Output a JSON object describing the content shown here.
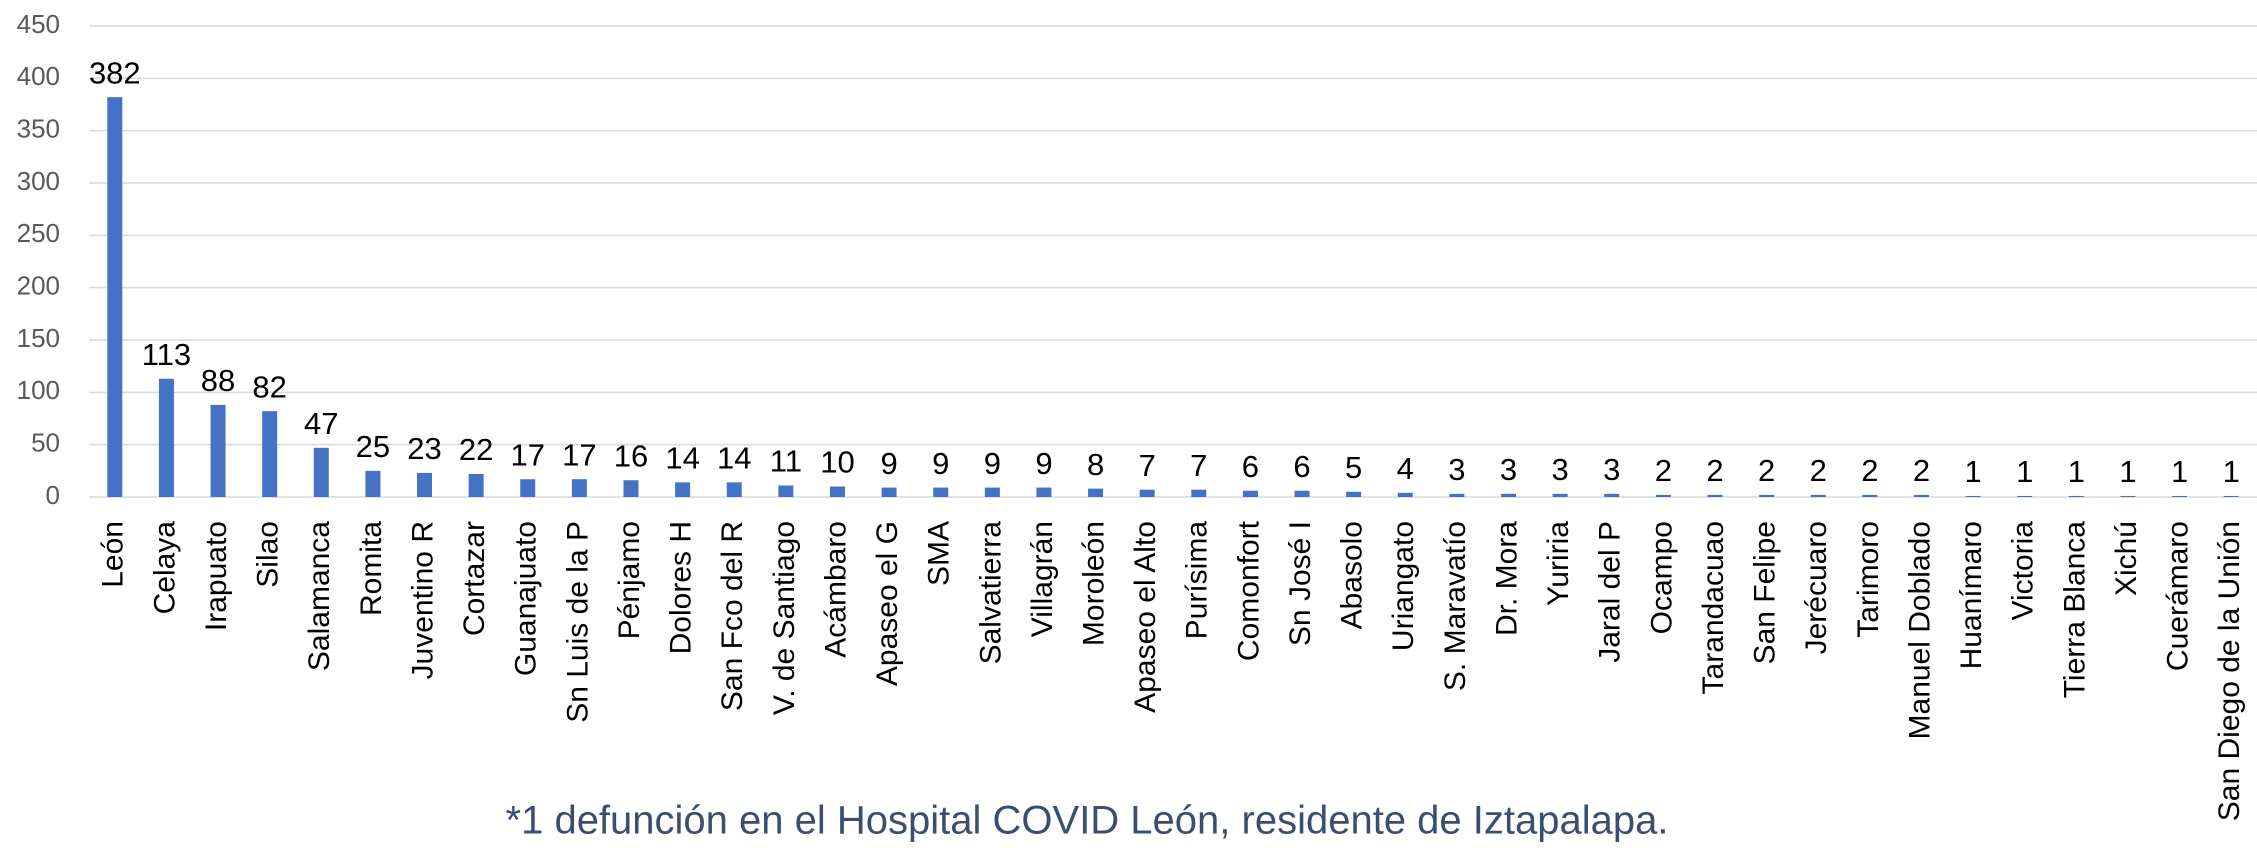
{
  "chart_data": {
    "type": "bar",
    "categories": [
      "León",
      "Celaya",
      "Irapuato",
      "Silao",
      "Salamanca",
      "Romita",
      "Juventino R",
      "Cortazar",
      "Guanajuato",
      "Sn Luis de la P",
      "Pénjamo",
      "Dolores H",
      "San Fco del R",
      "V. de Santiago",
      "Acámbaro",
      "Apaseo el G",
      "SMA",
      "Salvatierra",
      "Villagrán",
      "Moroleón",
      "Apaseo el Alto",
      "Purísima",
      "Comonfort",
      "Sn José I",
      "Abasolo",
      "Uriangato",
      "S. Maravatío",
      "Dr. Mora",
      "Yuriria",
      "Jaral del P",
      "Ocampo",
      "Tarandacuao",
      "San Felipe",
      "Jerécuaro",
      "Tarimoro",
      "Manuel Doblado",
      "Huanímaro",
      "Victoria",
      "Tierra Blanca",
      "Xichú",
      "Cuerámaro",
      "San Diego de la Unión"
    ],
    "values": [
      382,
      113,
      88,
      82,
      47,
      25,
      23,
      22,
      17,
      17,
      16,
      14,
      14,
      11,
      10,
      9,
      9,
      9,
      9,
      8,
      7,
      7,
      6,
      6,
      5,
      4,
      3,
      3,
      3,
      3,
      2,
      2,
      2,
      2,
      2,
      2,
      1,
      1,
      1,
      1,
      1,
      1
    ],
    "color": "#4472c4",
    "ylim": [
      0,
      450
    ],
    "yticks": [
      0,
      50,
      100,
      150,
      200,
      250,
      300,
      350,
      400,
      450
    ],
    "grid": true,
    "note": "*1 defunción en el Hospital COVID León, residente de Iztapalapa."
  }
}
